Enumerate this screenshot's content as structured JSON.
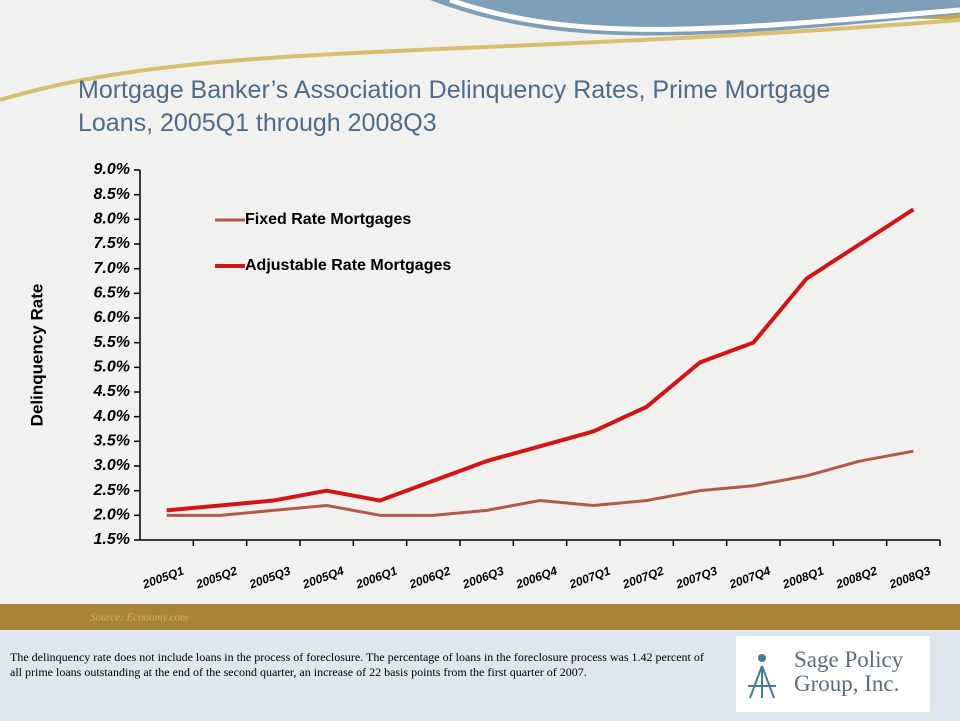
{
  "chart_data": {
    "type": "line",
    "title": "Mortgage Banker’s Association Delinquency Rates, Prime Mortgage Loans, 2005Q1 through 2008Q3",
    "y_label": "Delinquency Rate",
    "categories": [
      "2005Q1",
      "2005Q2",
      "2005Q3",
      "2005Q4",
      "2006Q1",
      "2006Q2",
      "2006Q3",
      "2006Q4",
      "2007Q1",
      "2007Q2",
      "2007Q3",
      "2007Q4",
      "2008Q1",
      "2008Q2",
      "2008Q3"
    ],
    "series": [
      {
        "name": "Fixed Rate Mortgages",
        "color": "#b05a48",
        "values": [
          2.0,
          2.0,
          2.1,
          2.2,
          2.0,
          2.0,
          2.1,
          2.3,
          2.2,
          2.3,
          2.5,
          2.6,
          2.8,
          3.1,
          3.3
        ]
      },
      {
        "name": "Adjustable Rate Mortgages",
        "color": "#d41414",
        "values": [
          2.1,
          2.2,
          2.3,
          2.5,
          2.3,
          2.7,
          3.1,
          3.4,
          3.7,
          4.2,
          5.1,
          5.5,
          6.8,
          7.5,
          8.2
        ]
      }
    ],
    "ylim": [
      1.5,
      9.0
    ],
    "yticks": [
      {
        "value": 1.5,
        "label": "1.5%"
      },
      {
        "value": 2.0,
        "label": "2.0%"
      },
      {
        "value": 2.5,
        "label": "2.5%"
      },
      {
        "value": 3.0,
        "label": "3.0%"
      },
      {
        "value": 3.5,
        "label": "3.5%"
      },
      {
        "value": 4.0,
        "label": "4.0%"
      },
      {
        "value": 4.5,
        "label": "4.5%"
      },
      {
        "value": 5.0,
        "label": "5.0%"
      },
      {
        "value": 5.5,
        "label": "5.5%"
      },
      {
        "value": 6.0,
        "label": "6.0%"
      },
      {
        "value": 6.5,
        "label": "6.5%"
      },
      {
        "value": 7.0,
        "label": "7.0%"
      },
      {
        "value": 7.5,
        "label": "7.5%"
      },
      {
        "value": 8.0,
        "label": "8.0%"
      },
      {
        "value": 8.5,
        "label": "8.5%"
      },
      {
        "value": 9.0,
        "label": "9.0%"
      }
    ],
    "grid": false,
    "legend": "upper-left"
  },
  "source": "Source: Economy.com",
  "note": "The delinquency rate does not include loans in the process of foreclosure.  The percentage of loans in the foreclosure process was 1.42 percent of all prime loans outstanding at the end of the second quarter, an increase of 22 basis points from the first quarter of 2007.",
  "logo": [
    "Sage Policy",
    "Group, Inc."
  ]
}
